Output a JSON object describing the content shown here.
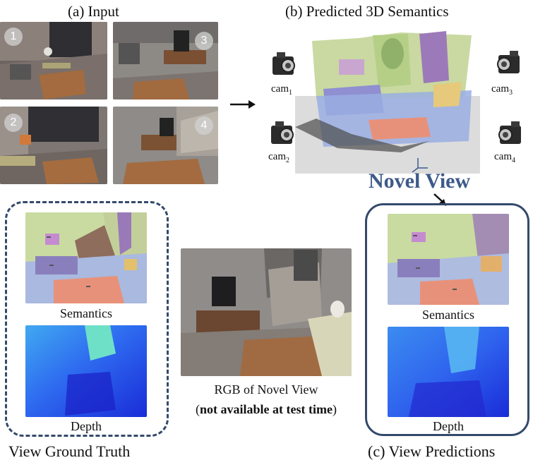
{
  "input": {
    "title": "(a) Input",
    "views": [
      {
        "badge": "1"
      },
      {
        "badge": "3"
      },
      {
        "badge": "2"
      },
      {
        "badge": "4"
      }
    ]
  },
  "predicted": {
    "title": "(b) Predicted 3D Semantics",
    "cameras": [
      {
        "label": "cam",
        "sub": "1"
      },
      {
        "label": "cam",
        "sub": "2"
      },
      {
        "label": "cam",
        "sub": "3"
      },
      {
        "label": "cam",
        "sub": "4"
      }
    ],
    "novel_view_label": "Novel View"
  },
  "ground_truth": {
    "semantics_label": "Semantics",
    "depth_label": "Depth",
    "title": "View Ground Truth"
  },
  "rgb": {
    "caption_line1": "RGB of Novel View",
    "caption_line2_open": "(",
    "caption_line2_bold": "not available at test time",
    "caption_line2_close": ")"
  },
  "predictions": {
    "semantics_label": "Semantics",
    "depth_label": "Depth",
    "title": "(c) View Predictions"
  },
  "colors": {
    "frame_blue": "#344a6b",
    "novel_view_blue": "#3d5a8a"
  }
}
